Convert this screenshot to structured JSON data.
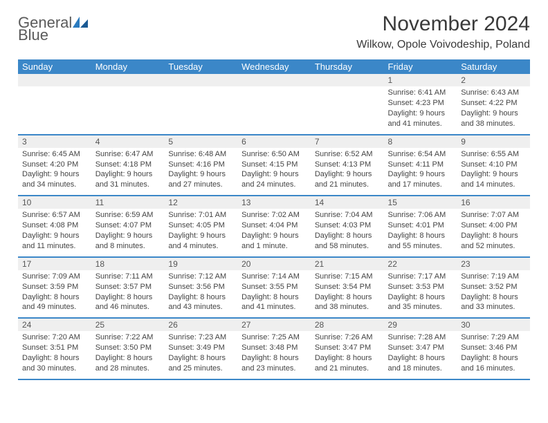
{
  "brand": {
    "part1": "General",
    "part2": "Blue"
  },
  "title": "November 2024",
  "location": "Wilkow, Opole Voivodeship, Poland",
  "colors": {
    "header_bg": "#3b87c8",
    "header_text": "#ffffff",
    "daynum_bg": "#efefef",
    "border": "#3b87c8",
    "text": "#444444",
    "brand_gray": "#5a5a5a",
    "brand_blue": "#2b7bbf"
  },
  "day_headers": [
    "Sunday",
    "Monday",
    "Tuesday",
    "Wednesday",
    "Thursday",
    "Friday",
    "Saturday"
  ],
  "weeks": [
    [
      null,
      null,
      null,
      null,
      null,
      {
        "n": "1",
        "sr": "Sunrise: 6:41 AM",
        "ss": "Sunset: 4:23 PM",
        "d1": "Daylight: 9 hours",
        "d2": "and 41 minutes."
      },
      {
        "n": "2",
        "sr": "Sunrise: 6:43 AM",
        "ss": "Sunset: 4:22 PM",
        "d1": "Daylight: 9 hours",
        "d2": "and 38 minutes."
      }
    ],
    [
      {
        "n": "3",
        "sr": "Sunrise: 6:45 AM",
        "ss": "Sunset: 4:20 PM",
        "d1": "Daylight: 9 hours",
        "d2": "and 34 minutes."
      },
      {
        "n": "4",
        "sr": "Sunrise: 6:47 AM",
        "ss": "Sunset: 4:18 PM",
        "d1": "Daylight: 9 hours",
        "d2": "and 31 minutes."
      },
      {
        "n": "5",
        "sr": "Sunrise: 6:48 AM",
        "ss": "Sunset: 4:16 PM",
        "d1": "Daylight: 9 hours",
        "d2": "and 27 minutes."
      },
      {
        "n": "6",
        "sr": "Sunrise: 6:50 AM",
        "ss": "Sunset: 4:15 PM",
        "d1": "Daylight: 9 hours",
        "d2": "and 24 minutes."
      },
      {
        "n": "7",
        "sr": "Sunrise: 6:52 AM",
        "ss": "Sunset: 4:13 PM",
        "d1": "Daylight: 9 hours",
        "d2": "and 21 minutes."
      },
      {
        "n": "8",
        "sr": "Sunrise: 6:54 AM",
        "ss": "Sunset: 4:11 PM",
        "d1": "Daylight: 9 hours",
        "d2": "and 17 minutes."
      },
      {
        "n": "9",
        "sr": "Sunrise: 6:55 AM",
        "ss": "Sunset: 4:10 PM",
        "d1": "Daylight: 9 hours",
        "d2": "and 14 minutes."
      }
    ],
    [
      {
        "n": "10",
        "sr": "Sunrise: 6:57 AM",
        "ss": "Sunset: 4:08 PM",
        "d1": "Daylight: 9 hours",
        "d2": "and 11 minutes."
      },
      {
        "n": "11",
        "sr": "Sunrise: 6:59 AM",
        "ss": "Sunset: 4:07 PM",
        "d1": "Daylight: 9 hours",
        "d2": "and 8 minutes."
      },
      {
        "n": "12",
        "sr": "Sunrise: 7:01 AM",
        "ss": "Sunset: 4:05 PM",
        "d1": "Daylight: 9 hours",
        "d2": "and 4 minutes."
      },
      {
        "n": "13",
        "sr": "Sunrise: 7:02 AM",
        "ss": "Sunset: 4:04 PM",
        "d1": "Daylight: 9 hours",
        "d2": "and 1 minute."
      },
      {
        "n": "14",
        "sr": "Sunrise: 7:04 AM",
        "ss": "Sunset: 4:03 PM",
        "d1": "Daylight: 8 hours",
        "d2": "and 58 minutes."
      },
      {
        "n": "15",
        "sr": "Sunrise: 7:06 AM",
        "ss": "Sunset: 4:01 PM",
        "d1": "Daylight: 8 hours",
        "d2": "and 55 minutes."
      },
      {
        "n": "16",
        "sr": "Sunrise: 7:07 AM",
        "ss": "Sunset: 4:00 PM",
        "d1": "Daylight: 8 hours",
        "d2": "and 52 minutes."
      }
    ],
    [
      {
        "n": "17",
        "sr": "Sunrise: 7:09 AM",
        "ss": "Sunset: 3:59 PM",
        "d1": "Daylight: 8 hours",
        "d2": "and 49 minutes."
      },
      {
        "n": "18",
        "sr": "Sunrise: 7:11 AM",
        "ss": "Sunset: 3:57 PM",
        "d1": "Daylight: 8 hours",
        "d2": "and 46 minutes."
      },
      {
        "n": "19",
        "sr": "Sunrise: 7:12 AM",
        "ss": "Sunset: 3:56 PM",
        "d1": "Daylight: 8 hours",
        "d2": "and 43 minutes."
      },
      {
        "n": "20",
        "sr": "Sunrise: 7:14 AM",
        "ss": "Sunset: 3:55 PM",
        "d1": "Daylight: 8 hours",
        "d2": "and 41 minutes."
      },
      {
        "n": "21",
        "sr": "Sunrise: 7:15 AM",
        "ss": "Sunset: 3:54 PM",
        "d1": "Daylight: 8 hours",
        "d2": "and 38 minutes."
      },
      {
        "n": "22",
        "sr": "Sunrise: 7:17 AM",
        "ss": "Sunset: 3:53 PM",
        "d1": "Daylight: 8 hours",
        "d2": "and 35 minutes."
      },
      {
        "n": "23",
        "sr": "Sunrise: 7:19 AM",
        "ss": "Sunset: 3:52 PM",
        "d1": "Daylight: 8 hours",
        "d2": "and 33 minutes."
      }
    ],
    [
      {
        "n": "24",
        "sr": "Sunrise: 7:20 AM",
        "ss": "Sunset: 3:51 PM",
        "d1": "Daylight: 8 hours",
        "d2": "and 30 minutes."
      },
      {
        "n": "25",
        "sr": "Sunrise: 7:22 AM",
        "ss": "Sunset: 3:50 PM",
        "d1": "Daylight: 8 hours",
        "d2": "and 28 minutes."
      },
      {
        "n": "26",
        "sr": "Sunrise: 7:23 AM",
        "ss": "Sunset: 3:49 PM",
        "d1": "Daylight: 8 hours",
        "d2": "and 25 minutes."
      },
      {
        "n": "27",
        "sr": "Sunrise: 7:25 AM",
        "ss": "Sunset: 3:48 PM",
        "d1": "Daylight: 8 hours",
        "d2": "and 23 minutes."
      },
      {
        "n": "28",
        "sr": "Sunrise: 7:26 AM",
        "ss": "Sunset: 3:47 PM",
        "d1": "Daylight: 8 hours",
        "d2": "and 21 minutes."
      },
      {
        "n": "29",
        "sr": "Sunrise: 7:28 AM",
        "ss": "Sunset: 3:47 PM",
        "d1": "Daylight: 8 hours",
        "d2": "and 18 minutes."
      },
      {
        "n": "30",
        "sr": "Sunrise: 7:29 AM",
        "ss": "Sunset: 3:46 PM",
        "d1": "Daylight: 8 hours",
        "d2": "and 16 minutes."
      }
    ]
  ]
}
